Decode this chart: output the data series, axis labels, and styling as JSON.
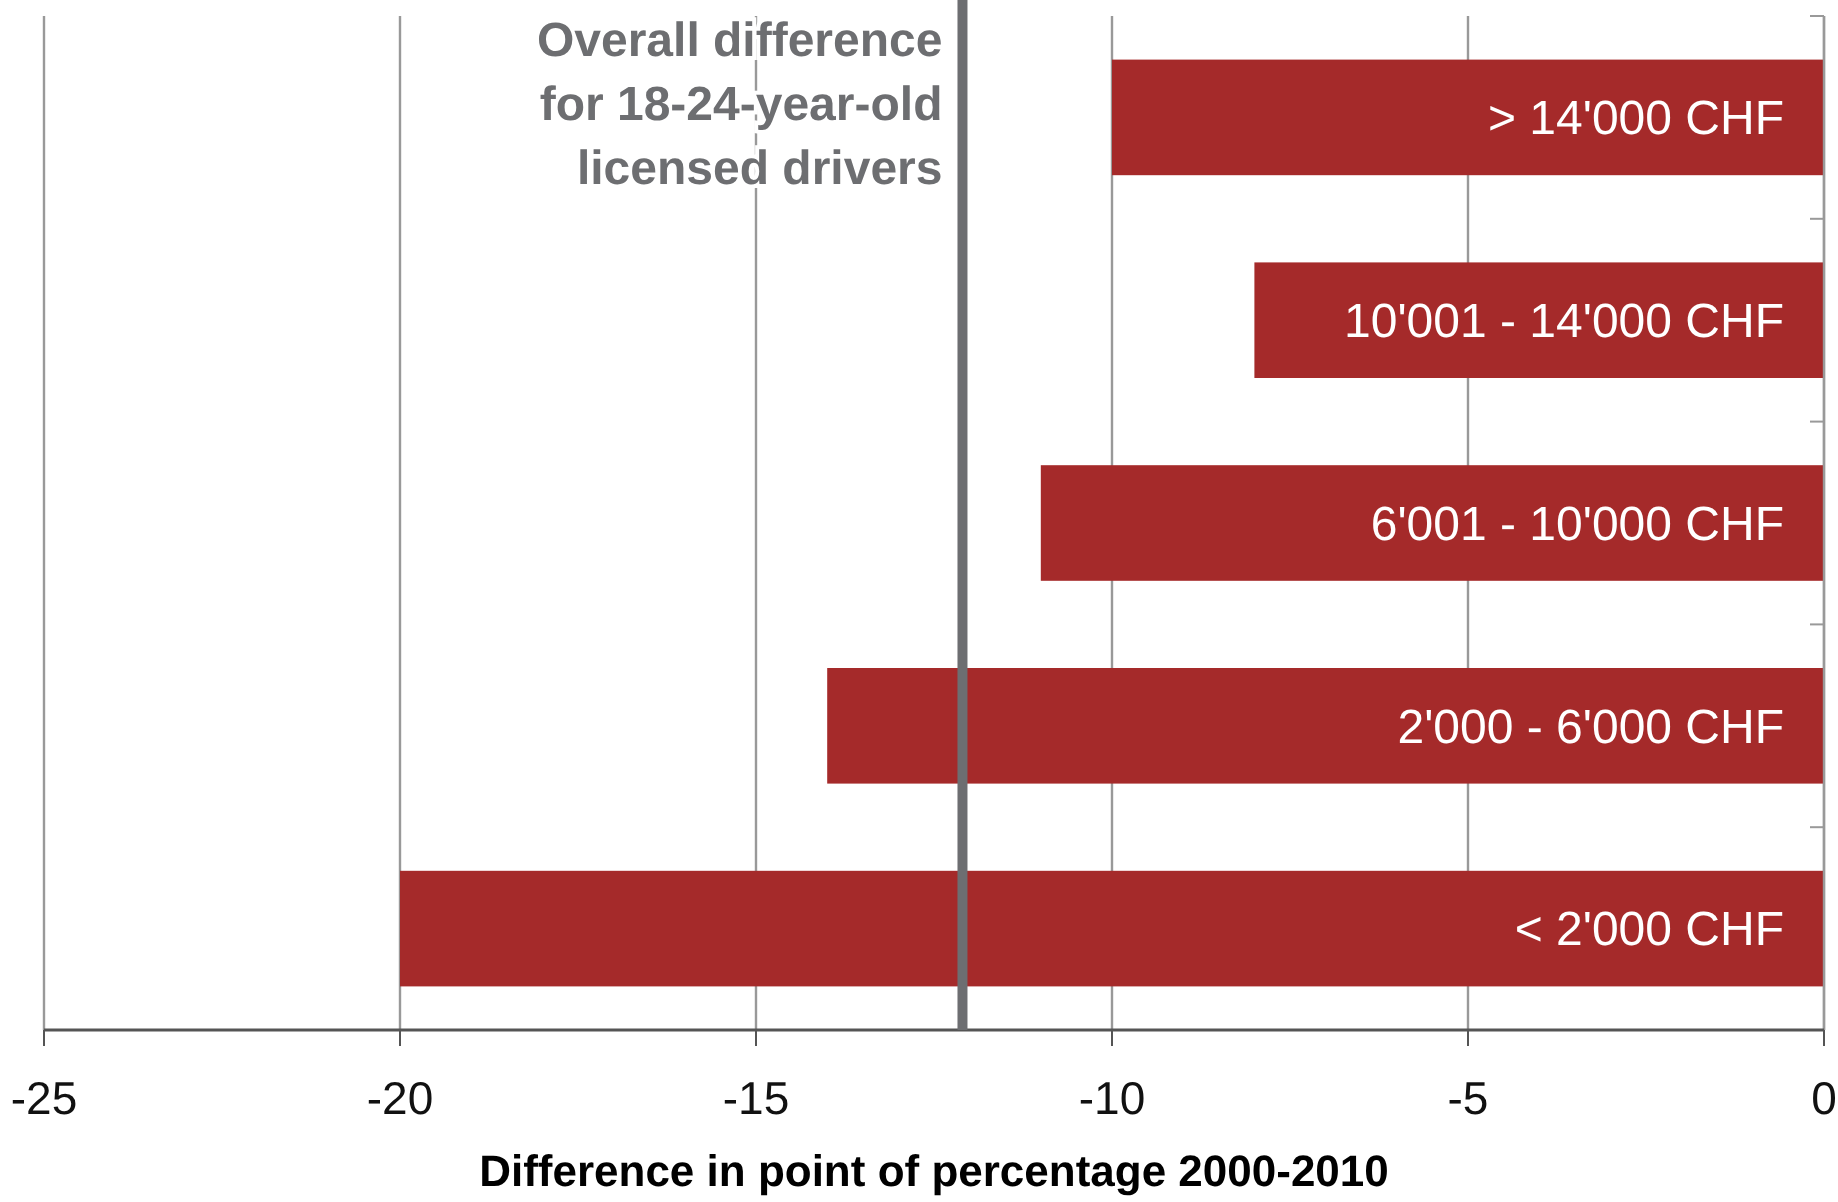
{
  "chart_data": {
    "type": "bar",
    "orientation": "horizontal",
    "xlabel": "Difference in point of percentage 2000-2010",
    "categories": [
      "> 14'000 CHF",
      "10'001 - 14'000 CHF",
      "6'001 - 10'000 CHF",
      "2'000 - 6'000 CHF",
      "< 2'000 CHF"
    ],
    "values": [
      -10,
      -8,
      -11,
      -14,
      -20
    ],
    "color": "#a52a2a",
    "xlim": [
      -25,
      0
    ],
    "xticks": [
      -25,
      -20,
      -15,
      -10,
      -5,
      0
    ],
    "grid": "x",
    "ref_lines": [
      {
        "axis": "x",
        "value": -12.1,
        "label": "Overall difference for 18-24-year-old licensed drivers",
        "color": "#6d6e71"
      }
    ]
  }
}
